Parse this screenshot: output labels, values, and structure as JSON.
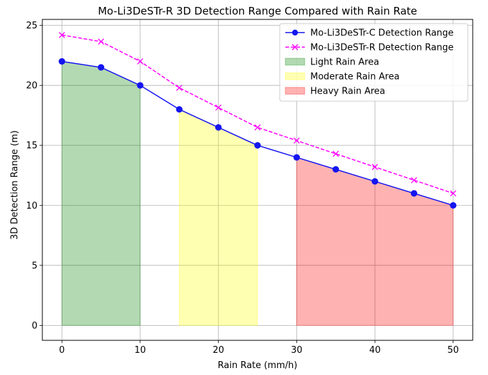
{
  "chart_data": {
    "type": "line",
    "title": "Mo-Li3DeSTr-R 3D Detection Range Compared with Rain Rate",
    "xlabel": "Rain Rate (mm/h)",
    "ylabel": "3D Detection Range (m)",
    "xlim": [
      -2.5,
      52.5
    ],
    "ylim": [
      -1.25,
      25.5
    ],
    "xticks": [
      0,
      10,
      20,
      30,
      40,
      50
    ],
    "yticks": [
      0,
      5,
      10,
      15,
      20,
      25
    ],
    "grid": true,
    "legend_position": "top-right",
    "x": [
      0,
      5,
      10,
      15,
      20,
      25,
      30,
      35,
      40,
      45,
      50
    ],
    "series": [
      {
        "name": "Mo-Li3DeSTr-C Detection Range",
        "values": [
          22,
          21.5,
          20,
          18,
          16.5,
          15,
          14,
          13,
          12,
          11,
          10
        ],
        "color": "#1515f0",
        "style": "solid",
        "marker": "circle"
      },
      {
        "name": "Mo-Li3DeSTr-R Detection Range",
        "values": [
          24.2,
          23.65,
          22,
          19.8,
          18.15,
          16.5,
          15.4,
          14.3,
          13.2,
          12.1,
          11
        ],
        "color": "#ff00ff",
        "style": "dashed",
        "marker": "x"
      }
    ],
    "areas": [
      {
        "name": "Light Rain Area",
        "x_from": 0,
        "x_to": 10,
        "color": "#008000",
        "opacity": 0.3
      },
      {
        "name": "Moderate Rain Area",
        "x_from": 15,
        "x_to": 25,
        "color": "#ffff00",
        "opacity": 0.3
      },
      {
        "name": "Heavy Rain Area",
        "x_from": 30,
        "x_to": 50,
        "color": "#ff0000",
        "opacity": 0.3
      }
    ]
  }
}
